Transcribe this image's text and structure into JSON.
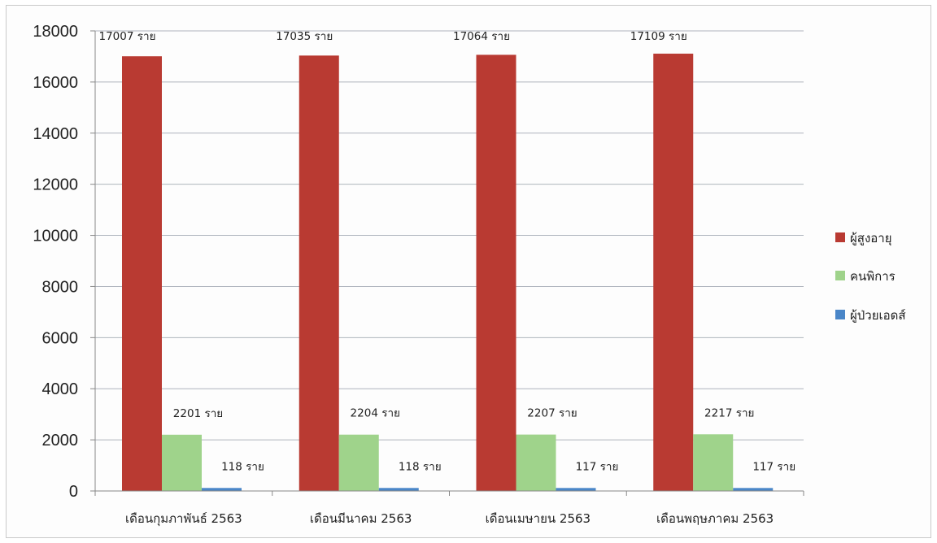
{
  "chart_data": {
    "type": "bar",
    "categories": [
      "เดือนกุมภาพันธ์ 2563",
      "เดือนมีนาคม 2563",
      "เดือนเมษายน 2563",
      "เดือนพฤษภาคม 2563"
    ],
    "series": [
      {
        "name": "ผู้สูงอายุ",
        "color": "#b93a32",
        "values": [
          17007,
          17035,
          17064,
          17109
        ],
        "labels": [
          "17007 ราย",
          "17035 ราย",
          "17064 ราย",
          "17109 ราย"
        ]
      },
      {
        "name": "คนพิการ",
        "color": "#9fd38b",
        "values": [
          2201,
          2204,
          2207,
          2217
        ],
        "labels": [
          "2201 ราย",
          "2204 ราย",
          "2207 ราย",
          "2217 ราย"
        ]
      },
      {
        "name": "ผู้ป่วยเอดส์",
        "color": "#4a86c8",
        "values": [
          118,
          118,
          117,
          117
        ],
        "labels": [
          "118 ราย",
          "118 ราย",
          "117 ราย",
          "117 ราย"
        ]
      }
    ],
    "ylim": [
      0,
      18000
    ],
    "yticks": [
      "0",
      "2000",
      "4000",
      "6000",
      "8000",
      "10000",
      "12000",
      "14000",
      "16000",
      "18000"
    ],
    "grid": true,
    "legend_position": "right"
  }
}
